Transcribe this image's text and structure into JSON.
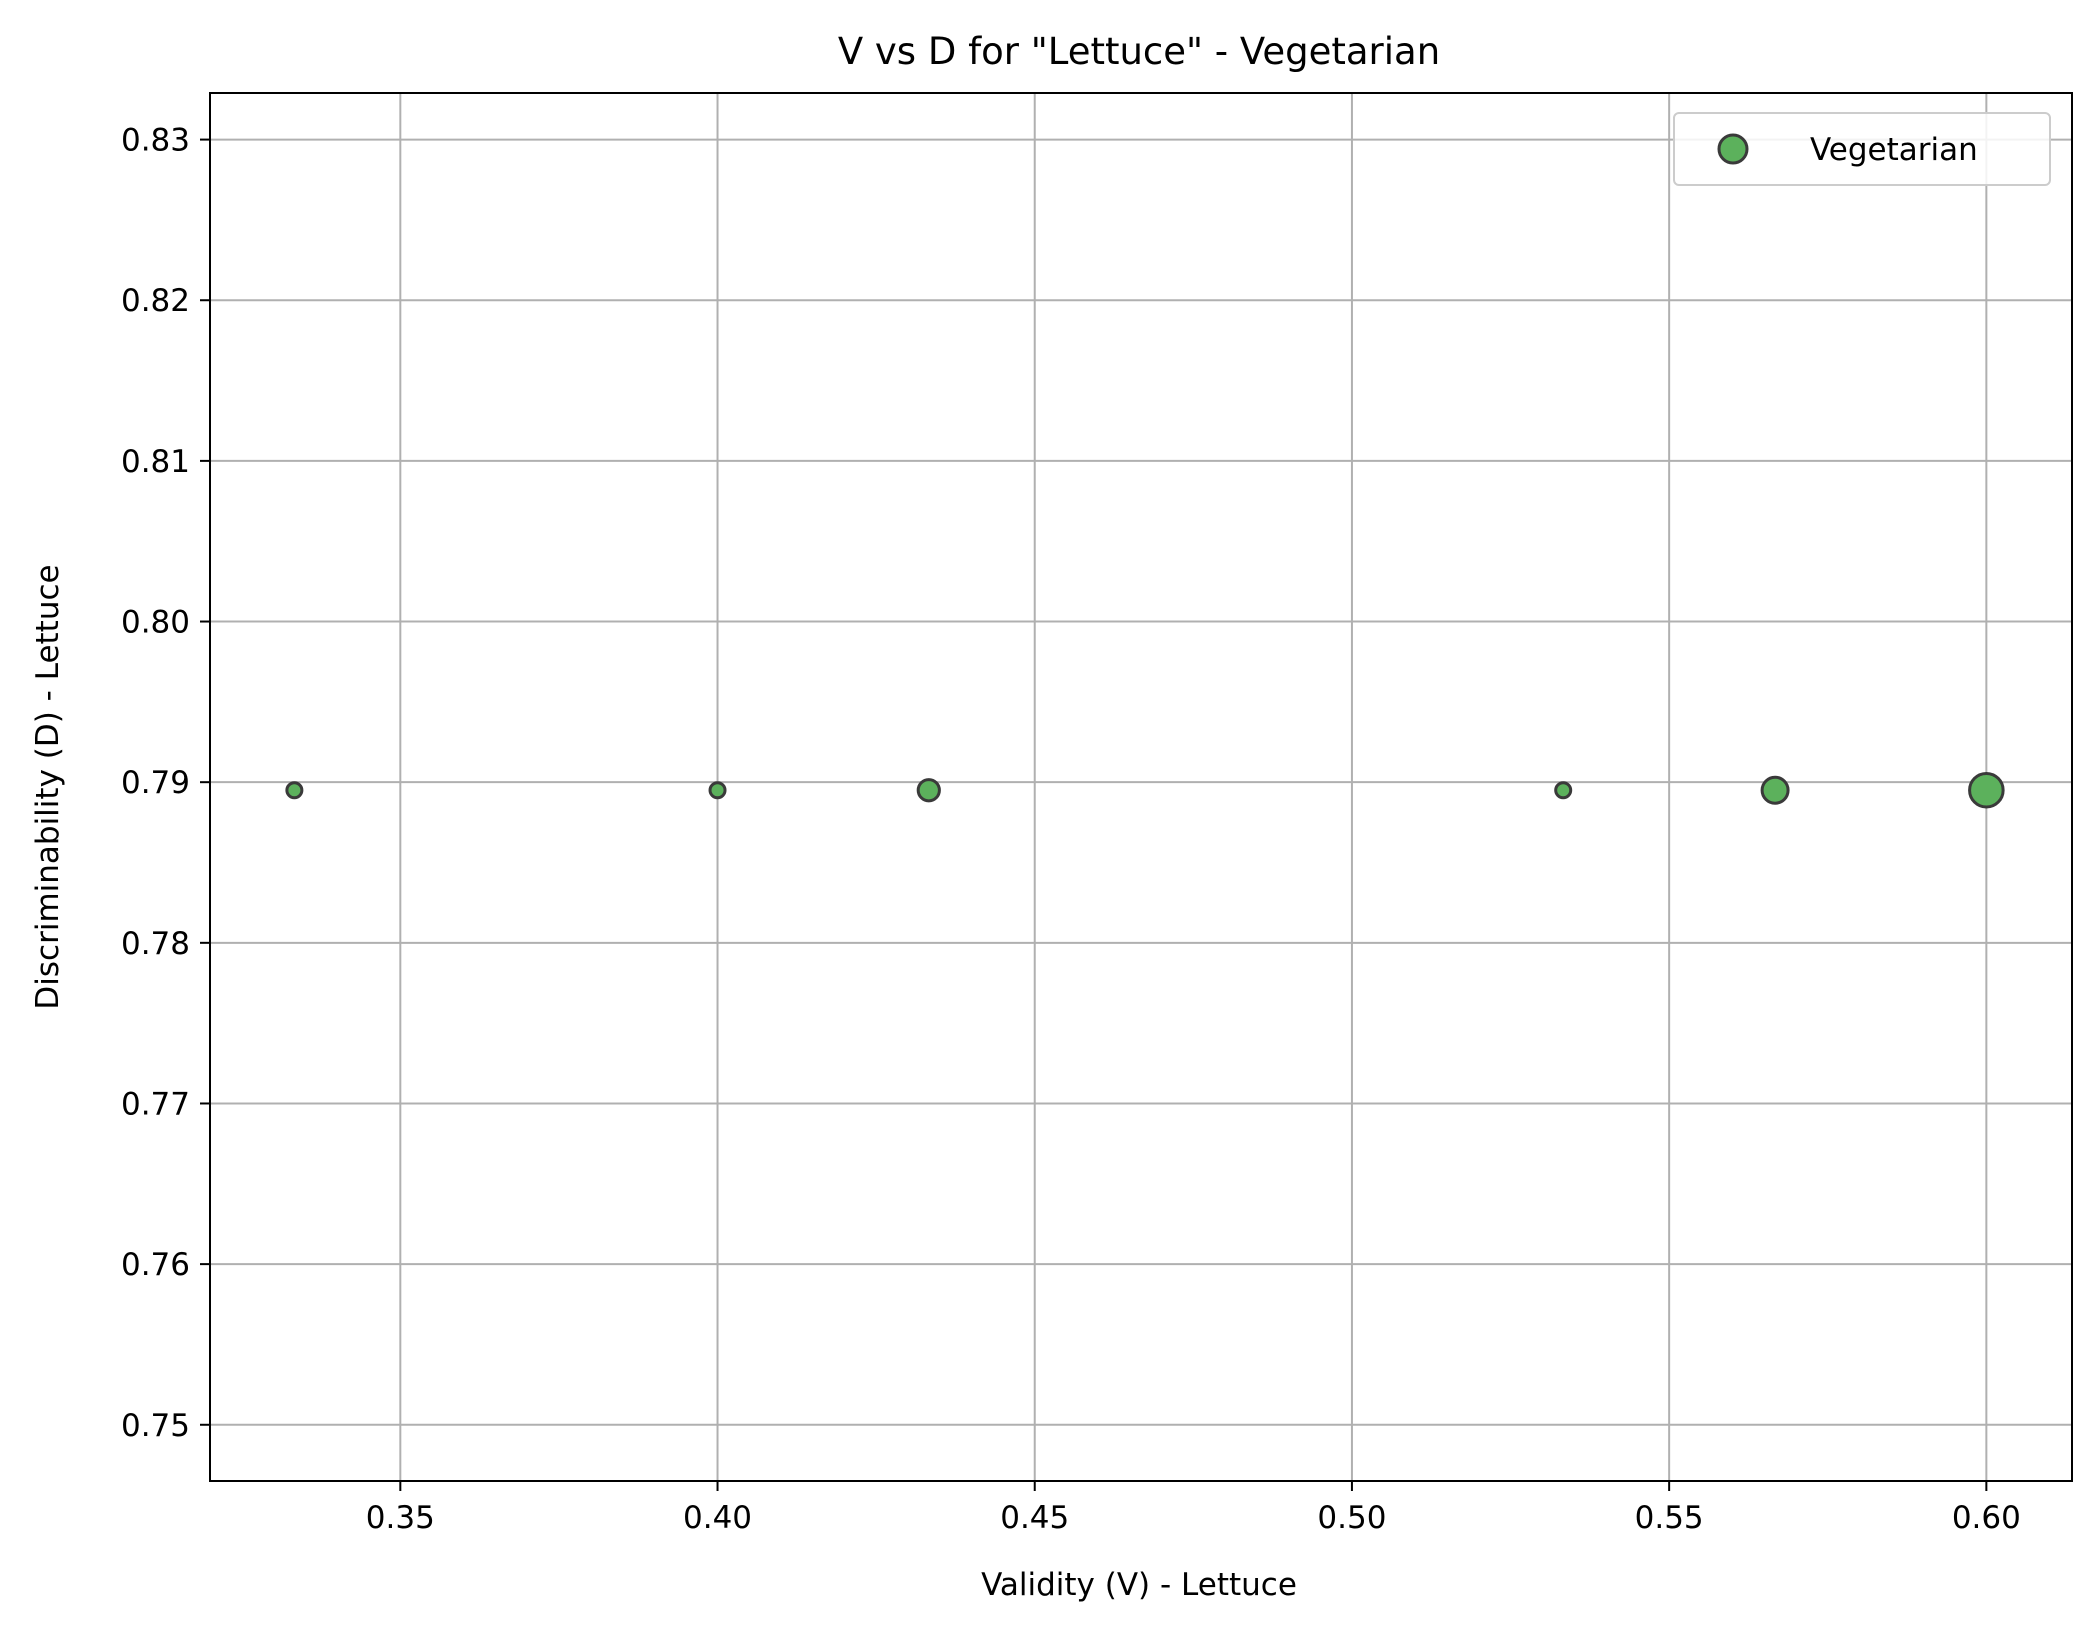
{
  "chart_data": {
    "type": "scatter",
    "title": "V vs D for \"Lettuce\" - Vegetarian",
    "xlabel": "Validity (V) - Lettuce",
    "ylabel": "Discriminability (D) - Lettuce",
    "xlim": [
      0.32,
      0.6135
    ],
    "ylim": [
      0.7465,
      0.8329
    ],
    "xticks": [
      0.35,
      0.4,
      0.45,
      0.5,
      0.55,
      0.6
    ],
    "xtick_labels": [
      "0.35",
      "0.40",
      "0.45",
      "0.50",
      "0.55",
      "0.60"
    ],
    "yticks": [
      0.75,
      0.76,
      0.77,
      0.78,
      0.79,
      0.8,
      0.81,
      0.82,
      0.83
    ],
    "ytick_labels": [
      "0.75",
      "0.76",
      "0.77",
      "0.78",
      "0.79",
      "0.80",
      "0.81",
      "0.82",
      "0.83"
    ],
    "grid": true,
    "legend_position": "top-right",
    "series": [
      {
        "name": "Vegetarian",
        "color": "#5cb15c",
        "edge_color": "#3a3a3a",
        "points": [
          {
            "x": 0.3333,
            "y": 0.7895,
            "size": 1
          },
          {
            "x": 0.4,
            "y": 0.7895,
            "size": 1
          },
          {
            "x": 0.4333,
            "y": 0.7895,
            "size": 2
          },
          {
            "x": 0.5333,
            "y": 0.7895,
            "size": 1
          },
          {
            "x": 0.5667,
            "y": 0.7895,
            "size": 3
          },
          {
            "x": 0.6,
            "y": 0.7895,
            "size": 5
          }
        ]
      }
    ]
  }
}
